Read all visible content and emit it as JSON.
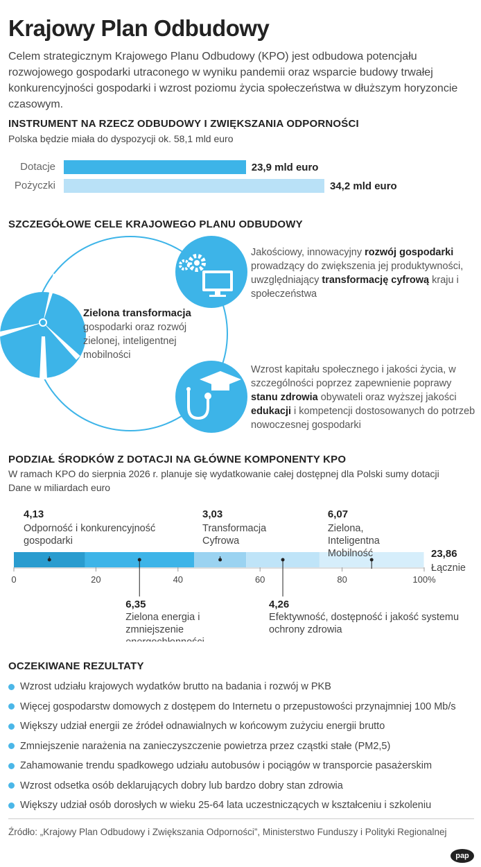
{
  "title": "Krajowy Plan Odbudowy",
  "intro": "Celem strategicznym Krajowego Planu Odbudowy (KPO) jest odbudowa potencjału rozwojowego gospodarki utraconego w wyniku pandemii oraz wsparcie budowy trwałej konkurencyjności gospodarki i wzrost poziomu życia społeczeństwa w dłuższym horyzoncie czasowym.",
  "section1": {
    "heading": "INSTRUMENT NA RZECZ ODBUDOWY I ZWIĘKSZANIA ODPORNOŚCI",
    "subtitle": "Polska będzie miała do dyspozycji ok. 58,1 mld euro"
  },
  "section2": {
    "heading": "SZCZEGÓŁOWE CELE KRAJOWEGO PLANU ODBUDOWY",
    "goal_green_title": "Zielona transformacja",
    "goal_green_text": "gospodarki oraz rozwój zielonej, inteligentnej mobilności",
    "goal_digital": {
      "t1": "Jakościowy, innowacyjny ",
      "b1": "rozwój gospodarki",
      "t2": " prowadzący do zwiększenia jej produktywności, uwzględniający ",
      "b2": "transformację cyfrową",
      "t3": " kraju i społeczeństwa"
    },
    "goal_social": {
      "t1": "Wzrost kapitału społecznego i jakości życia, w szczególności poprzez zapewnienie poprawy ",
      "b1": "stanu zdrowia",
      "t2": " obywateli oraz wyższej jakości ",
      "b2": "edukacji",
      "t3": " i kompetencji dostosowanych do potrzeb nowoczesnej gospodarki"
    },
    "icons": [
      "wind-turbine-icon",
      "gears-monitor-icon",
      "graduation-cap-stethoscope-icon"
    ]
  },
  "section3": {
    "heading": "PODZIAŁ ŚRODKÓW Z DOTACJI NA GŁÓWNE KOMPONENTY KPO",
    "subtitle1": "W ramach KPO do sierpnia 2026 r. planuje się wydatkowanie całej dostępnej dla Polski sumy dotacji",
    "subtitle2": "Dane w miliardach euro",
    "total_value": "23,86",
    "total_label": "Łącznie"
  },
  "section4": {
    "heading": "OCZEKIWANE REZULTATY",
    "items": [
      "Wzrost udziału krajowych wydatków brutto na badania i rozwój w PKB",
      "Więcej gospodarstw domowych z dostępem do Internetu o przepustowości przynajmniej 100 Mb/s",
      "Większy udział energii ze źródeł odnawialnych w końcowym zużyciu energii brutto",
      "Zmniejszenie narażenia na zanieczyszczenie powietrza przez cząstki stałe (PM2,5)",
      "Zahamowanie trendu spadkowego udziału autobusów i pociągów w transporcie pasażerskim",
      "Wzrost odsetka osób deklarujących dobry lub bardzo dobry stan zdrowia",
      "Większy udział osób dorosłych w wieku 25-64 lata uczestniczących w kształceniu i szkoleniu"
    ]
  },
  "source": "Źródło: „Krajowy Plan Odbudowy i Zwiększania Odporności”, Ministerstwo Funduszy i Polityki Regionalnej",
  "logo": "pap",
  "colors": {
    "blue": "#3db4e8",
    "light_blue": "#b9e1f7",
    "seg1": "#2a9ccf",
    "seg2": "#3db4e8",
    "seg3": "#9bd3f1",
    "seg4": "#bfe4f8",
    "seg5": "#d6eefb"
  },
  "chart_data": [
    {
      "type": "bar",
      "orientation": "horizontal",
      "categories": [
        "Dotacje",
        "Pożyczki"
      ],
      "values": [
        23.9,
        34.2
      ],
      "value_labels": [
        "23,9 mld euro",
        "34,2 mld euro"
      ],
      "units": "mld euro"
    },
    {
      "type": "bar",
      "orientation": "horizontal-stacked-100",
      "series": [
        {
          "name": "Odporność i konkurencyjność gospodarki",
          "value": 4.13,
          "label": "4,13"
        },
        {
          "name": "Zielona energia i zmniejszenie energochłonności",
          "value": 6.35,
          "label": "6,35"
        },
        {
          "name": "Transformacja Cyfrowa",
          "value": 3.03,
          "label": "3,03"
        },
        {
          "name": "Efektywność, dostępność i jakość systemu ochrony zdrowia",
          "value": 4.26,
          "label": "4,26"
        },
        {
          "name": "Zielona, Inteligentna Mobilność",
          "value": 6.07,
          "label": "6,07"
        }
      ],
      "total": 23.86,
      "x_ticks": [
        "0",
        "20",
        "40",
        "60",
        "80",
        "100%"
      ],
      "xlim": [
        0,
        100
      ],
      "units": "mld euro"
    }
  ]
}
